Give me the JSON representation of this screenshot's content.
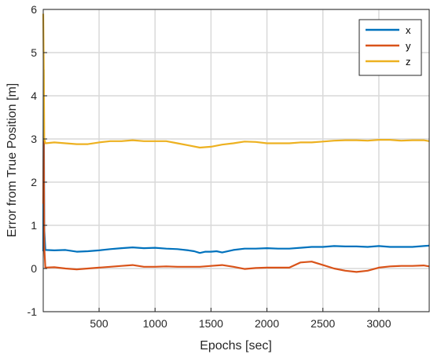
{
  "chart_data": {
    "type": "line",
    "xlabel": "Epochs [sec]",
    "ylabel": "Error from True Position [m]",
    "xlim": [
      1,
      3450
    ],
    "ylim": [
      -1,
      6
    ],
    "xticks": [
      500,
      1000,
      1500,
      2000,
      2500,
      3000
    ],
    "yticks": [
      -1,
      0,
      1,
      2,
      3,
      4,
      5,
      6
    ],
    "grid": true,
    "legend_position": "top-right",
    "series": [
      {
        "name": "x",
        "color": "#0072BD",
        "x": [
          1,
          5,
          10,
          20,
          100,
          200,
          300,
          400,
          500,
          600,
          700,
          800,
          900,
          1000,
          1100,
          1200,
          1300,
          1350,
          1400,
          1450,
          1500,
          1550,
          1600,
          1700,
          1800,
          1900,
          2000,
          2100,
          2200,
          2300,
          2400,
          2500,
          2600,
          2700,
          2800,
          2900,
          3000,
          3100,
          3200,
          3300,
          3400,
          3450
        ],
        "values": [
          0.4,
          4.6,
          0.9,
          0.43,
          0.42,
          0.43,
          0.39,
          0.4,
          0.42,
          0.45,
          0.47,
          0.49,
          0.47,
          0.48,
          0.46,
          0.45,
          0.42,
          0.4,
          0.36,
          0.39,
          0.39,
          0.4,
          0.37,
          0.43,
          0.46,
          0.46,
          0.47,
          0.46,
          0.46,
          0.48,
          0.5,
          0.5,
          0.52,
          0.51,
          0.51,
          0.5,
          0.52,
          0.5,
          0.5,
          0.5,
          0.52,
          0.53
        ]
      },
      {
        "name": "y",
        "color": "#D95319",
        "x": [
          1,
          5,
          10,
          20,
          100,
          200,
          300,
          400,
          500,
          600,
          700,
          800,
          900,
          1000,
          1100,
          1200,
          1300,
          1400,
          1500,
          1600,
          1700,
          1800,
          1900,
          2000,
          2100,
          2200,
          2300,
          2400,
          2500,
          2600,
          2700,
          2800,
          2900,
          3000,
          3100,
          3200,
          3300,
          3400,
          3450
        ],
        "values": [
          1.5,
          3.2,
          0.5,
          0.02,
          0.03,
          0.0,
          -0.02,
          0.0,
          0.02,
          0.04,
          0.06,
          0.08,
          0.04,
          0.04,
          0.05,
          0.04,
          0.04,
          0.04,
          0.06,
          0.08,
          0.04,
          -0.01,
          0.01,
          0.02,
          0.02,
          0.02,
          0.14,
          0.16,
          0.08,
          0.0,
          -0.05,
          -0.08,
          -0.05,
          0.02,
          0.05,
          0.06,
          0.06,
          0.07,
          0.05
        ]
      },
      {
        "name": "z",
        "color": "#EDB120",
        "x": [
          1,
          5,
          10,
          20,
          100,
          200,
          300,
          400,
          500,
          600,
          700,
          800,
          900,
          1000,
          1100,
          1200,
          1300,
          1400,
          1500,
          1600,
          1700,
          1800,
          1900,
          2000,
          2100,
          2200,
          2300,
          2400,
          2500,
          2600,
          2700,
          2800,
          2900,
          3000,
          3100,
          3200,
          3300,
          3400,
          3450
        ],
        "values": [
          5.9,
          4.8,
          3.0,
          2.9,
          2.92,
          2.9,
          2.88,
          2.88,
          2.92,
          2.95,
          2.95,
          2.97,
          2.95,
          2.95,
          2.95,
          2.9,
          2.85,
          2.8,
          2.82,
          2.87,
          2.9,
          2.94,
          2.93,
          2.9,
          2.9,
          2.9,
          2.92,
          2.92,
          2.94,
          2.96,
          2.97,
          2.97,
          2.96,
          2.98,
          2.98,
          2.96,
          2.97,
          2.97,
          2.95
        ]
      }
    ]
  }
}
